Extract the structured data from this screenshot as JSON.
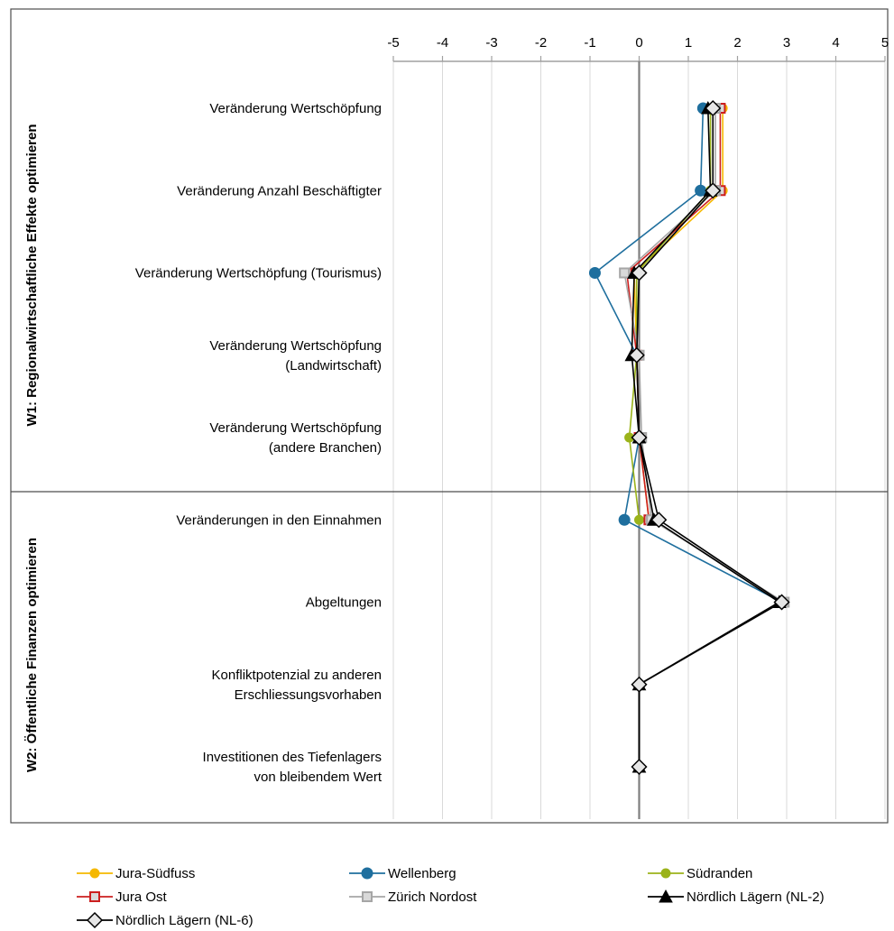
{
  "chart_data": {
    "type": "line",
    "orientation": "horizontal-values",
    "xlim": [
      -5,
      5
    ],
    "x_ticks": [
      "-5",
      "-4",
      "-3",
      "-2",
      "-1",
      "0",
      "1",
      "2",
      "3",
      "4",
      "5"
    ],
    "grid": true,
    "legend_position": "bottom",
    "groups": [
      {
        "label": "W1: Regionalwirtschaftliche Effekte optimieren",
        "category_count": 5
      },
      {
        "label": "W2: Öffentliche Finanzen optimieren",
        "category_count": 4
      }
    ],
    "categories": [
      [
        "Veränderung  Wertschöpfung"
      ],
      [
        "Veränderung  Anzahl Beschäftigter"
      ],
      [
        "Veränderung Wertschöpfung (Tourismus)"
      ],
      [
        "Veränderung Wertschöpfung",
        "(Landwirtschaft)"
      ],
      [
        "Veränderung Wertschöpfung",
        "(andere Branchen)"
      ],
      [
        "Veränderungen in den Einnahmen"
      ],
      [
        "Abgeltungen"
      ],
      [
        "Konfliktpotenzial zu anderen",
        "Erschliessungsvorhaben"
      ],
      [
        "Investitionen des Tiefenlagers",
        "von bleibendem Wert"
      ]
    ],
    "series": [
      {
        "name": "Jura-Südfuss",
        "color": "#f5b800",
        "marker": "circle",
        "values": [
          1.7,
          1.7,
          -0.1,
          -0.05,
          0.0,
          0.2,
          null,
          null,
          null
        ]
      },
      {
        "name": "Wellenberg",
        "color": "#1f6f9e",
        "marker": "circle-large",
        "values": [
          1.3,
          1.25,
          -0.9,
          -0.05,
          0.0,
          -0.3,
          2.9,
          null,
          null
        ]
      },
      {
        "name": "Südranden",
        "color": "#9bb31a",
        "marker": "circle",
        "values": [
          1.45,
          1.45,
          -0.05,
          -0.05,
          -0.2,
          0.0,
          null,
          null,
          null
        ]
      },
      {
        "name": "Jura Ost",
        "color": "#cc1f1f",
        "marker": "square",
        "values": [
          1.65,
          1.65,
          -0.25,
          -0.05,
          0.0,
          0.2,
          null,
          null,
          null
        ]
      },
      {
        "name": "Zürich Nordost",
        "color": "#a6a6a6",
        "marker": "square",
        "values": [
          1.55,
          1.55,
          -0.3,
          0.0,
          0.05,
          0.25,
          2.95,
          null,
          null
        ]
      },
      {
        "name": "Nördlich Lägern (NL-2)",
        "color": "#000000",
        "marker": "triangle",
        "values": [
          1.4,
          1.45,
          -0.1,
          -0.15,
          0.0,
          0.3,
          2.85,
          0.0,
          0.0
        ]
      },
      {
        "name": "Nördlich Lägern (NL-6)",
        "color": "#000000",
        "marker": "diamond",
        "values": [
          1.5,
          1.5,
          0.0,
          -0.05,
          0.0,
          0.4,
          2.9,
          0.0,
          0.0
        ]
      }
    ]
  }
}
